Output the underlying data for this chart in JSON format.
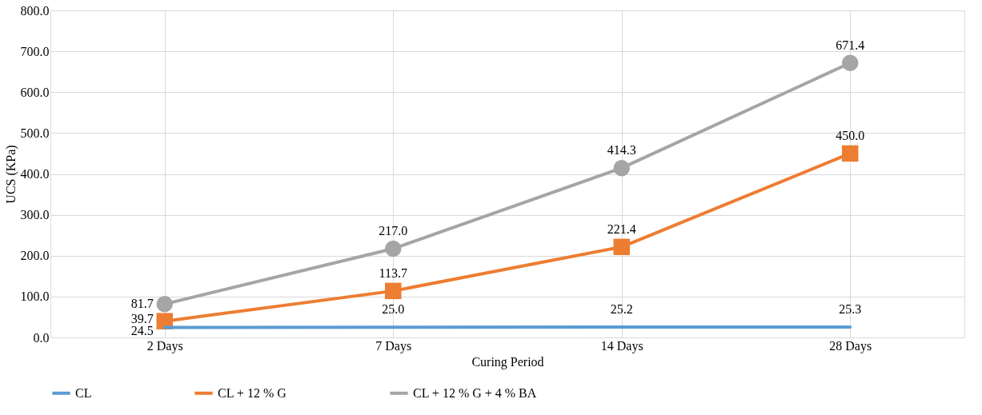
{
  "chart_data": {
    "type": "line",
    "xlabel": "Curing Period",
    "ylabel": "UCS (KPa)",
    "categories": [
      "2 Days",
      "7 Days",
      "14 Days",
      "28 Days"
    ],
    "ylim": [
      0,
      800
    ],
    "yticks": [
      {
        "value": 0,
        "label": "0.0"
      },
      {
        "value": 100,
        "label": "100.0"
      },
      {
        "value": 200,
        "label": "200.0"
      },
      {
        "value": 300,
        "label": "300.0"
      },
      {
        "value": 400,
        "label": "400.0"
      },
      {
        "value": 500,
        "label": "500.0"
      },
      {
        "value": 600,
        "label": "600.0"
      },
      {
        "value": 700,
        "label": "700.0"
      },
      {
        "value": 800,
        "label": "800.0"
      }
    ],
    "grid": true,
    "legend": "bottom",
    "series": [
      {
        "name": "CL",
        "color": "#5b9bd5",
        "marker": "none",
        "values": [
          24.5,
          25.0,
          25.2,
          25.3
        ],
        "value_labels": [
          "24.5",
          "25.0",
          "25.2",
          "25.3"
        ]
      },
      {
        "name": "CL + 12 % G",
        "color": "#ed7d31",
        "marker": "square",
        "values": [
          39.7,
          113.7,
          221.4,
          450.0
        ],
        "value_labels": [
          "39.7",
          "113.7",
          "221.4",
          "450.0"
        ]
      },
      {
        "name": "CL + 12 % G + 4 % BA",
        "color": "#a5a5a5",
        "marker": "circle",
        "values": [
          81.7,
          217.0,
          414.3,
          671.4
        ],
        "value_labels": [
          "81.7",
          "217.0",
          "414.3",
          "671.4"
        ]
      }
    ]
  }
}
